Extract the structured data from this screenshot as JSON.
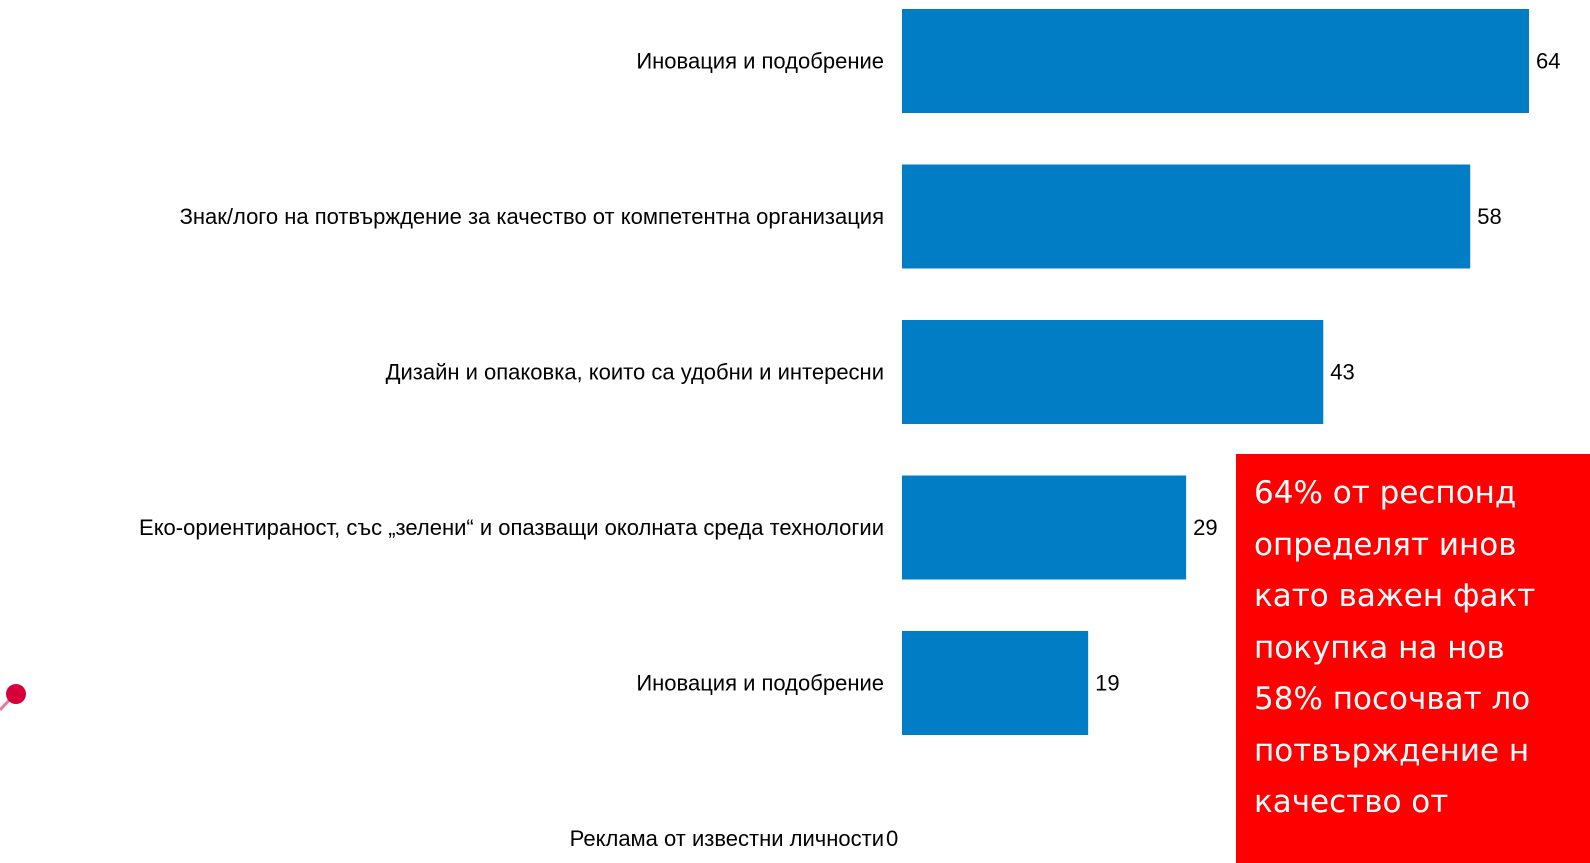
{
  "chart_data": {
    "type": "bar",
    "orientation": "horizontal",
    "categories": [
      "Иновация и подобрение",
      "Знак/лого на потвърждение за качество от  компетентна организация",
      "Дизайн и опаковка, които са удобни и интересни",
      "Еко-ориентираност, със „зелени“ и опазващи околната среда технологии",
      "Иновация и подобрение",
      "Реклама от известни личности"
    ],
    "values": [
      64,
      58,
      43,
      29,
      19,
      0
    ],
    "xlim": [
      0,
      64
    ],
    "grid": false,
    "bar_color": "#007dc5"
  },
  "callout": {
    "text": "64% от респонд\nопределят инов\nкато важен факт\nпокупка на нов\n58% посочват ло\nпотвърждение н\nкачество от",
    "background": "#ff0000",
    "color": "#ffffff"
  },
  "decor": {
    "pin_color": "#d6003a"
  }
}
